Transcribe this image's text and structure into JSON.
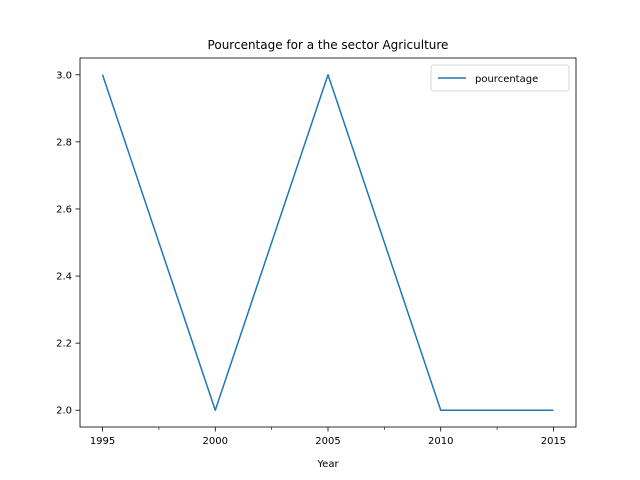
{
  "chart_data": {
    "type": "line",
    "title": "Pourcentage for a the sector Agriculture",
    "xlabel": "Year",
    "ylabel": "",
    "x": [
      1995,
      2000,
      2005,
      2010,
      2015
    ],
    "series": [
      {
        "name": "pourcentage",
        "values": [
          3.0,
          2.0,
          3.0,
          2.0,
          2.0
        ],
        "color": "#1f77b4"
      }
    ],
    "xlim": [
      1994,
      2016
    ],
    "ylim": [
      1.95,
      3.05
    ],
    "x_ticks": [
      1995,
      2000,
      2005,
      2010,
      2015
    ],
    "x_tick_labels": [
      "1995",
      "2000",
      "2005",
      "2010",
      "2015"
    ],
    "x_minor_ticks": [
      1997.5,
      2002.5,
      2007.5,
      2012.5
    ],
    "y_ticks": [
      2.0,
      2.2,
      2.4,
      2.6,
      2.8,
      3.0
    ],
    "y_tick_labels": [
      "2.0",
      "2.2",
      "2.4",
      "2.6",
      "2.8",
      "3.0"
    ],
    "grid": false,
    "legend_position": "upper-right"
  }
}
